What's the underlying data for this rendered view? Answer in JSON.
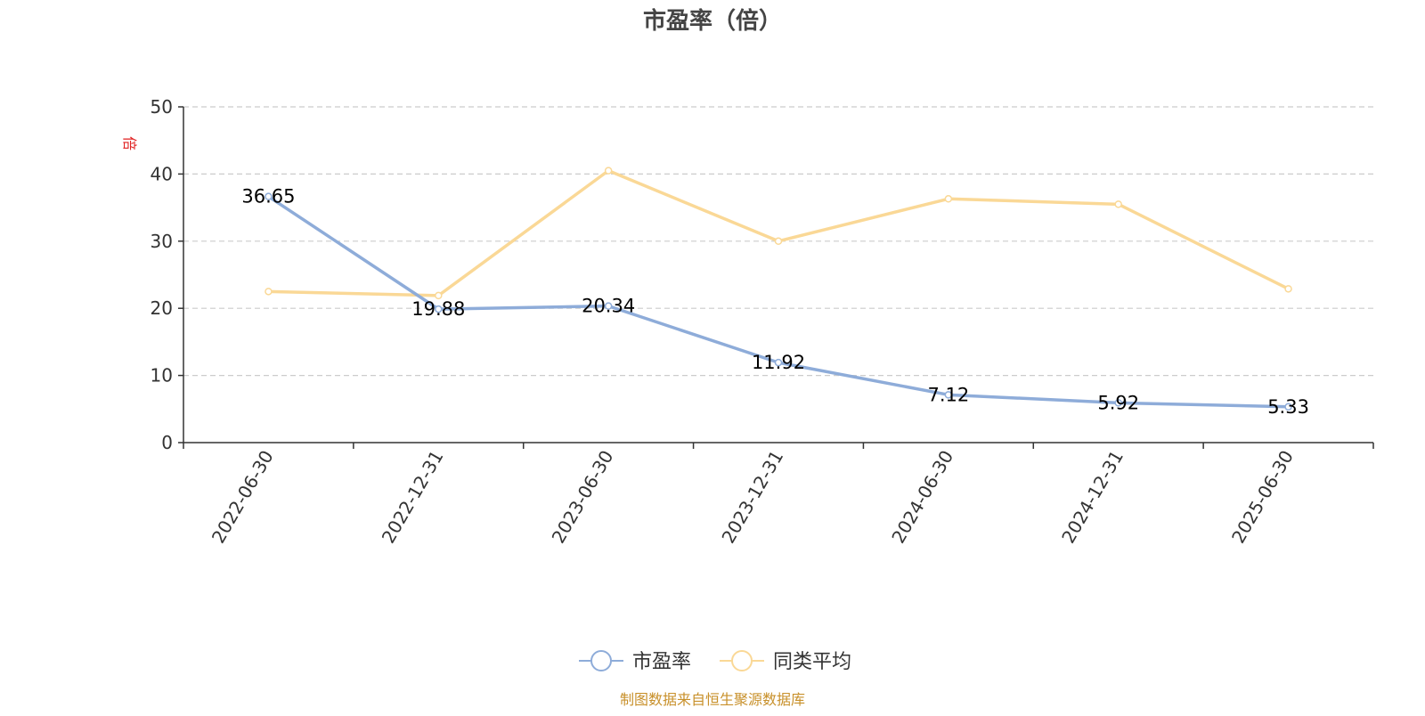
{
  "chart_data": {
    "type": "line",
    "title": "市盈率（倍）",
    "ylabel": "倍",
    "xlabel": "",
    "categories": [
      "2022-06-30",
      "2022-12-31",
      "2023-06-30",
      "2023-12-31",
      "2024-06-30",
      "2024-12-31",
      "2025-06-30"
    ],
    "ylim": [
      0,
      50
    ],
    "yticks": [
      0,
      10,
      20,
      30,
      40,
      50
    ],
    "grid": true,
    "legend_position": "bottom-center",
    "series": [
      {
        "name": "市盈率",
        "color": "#8eacd9",
        "values": [
          36.65,
          19.88,
          20.34,
          11.92,
          7.12,
          5.92,
          5.33
        ],
        "labels": [
          "36.65",
          "19.88",
          "20.34",
          "11.92",
          "7.12",
          "5.92",
          "5.33"
        ]
      },
      {
        "name": "同类平均",
        "color": "#fad896",
        "values": [
          22.5,
          21.9,
          40.5,
          30.0,
          36.3,
          35.5,
          22.9
        ]
      }
    ],
    "source_note": "制图数据来自恒生聚源数据库",
    "colors": {
      "axis": "#333333",
      "grid": "#cccccc",
      "title": "#444444",
      "ylabel": "#e02020",
      "source": "#c8902a"
    }
  }
}
